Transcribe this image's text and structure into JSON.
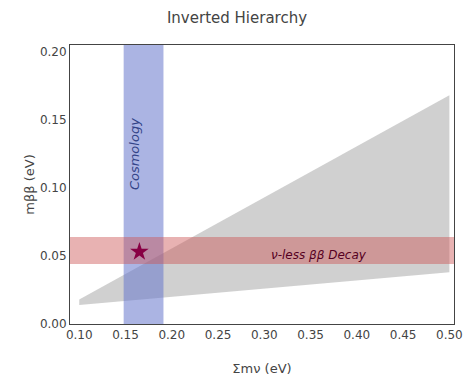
{
  "chart_data": {
    "type": "scatter",
    "title": "Inverted Hierarchy",
    "xlabel": "Σmν (eV)",
    "ylabel": "mββ (eV)",
    "xlim": [
      0.09,
      0.505
    ],
    "ylim": [
      0.0,
      0.205
    ],
    "xticks": [
      {
        "value": 0.1,
        "label": "0.10"
      },
      0.15,
      {
        "value": 0.2,
        "label": "0.20"
      },
      0.25,
      {
        "value": 0.3,
        "label": "0.30"
      },
      0.35,
      {
        "value": 0.4,
        "label": "0.40"
      },
      0.45,
      {
        "value": 0.5,
        "label": "0.50"
      }
    ],
    "yticks": [
      {
        "value": 0.0,
        "label": "0.00"
      },
      0.05,
      {
        "value": 0.1,
        "label": "0.10"
      },
      0.15,
      {
        "value": 0.2,
        "label": "0.20"
      }
    ],
    "grid": false,
    "background_color": "#ffffff",
    "regions": [
      {
        "type": "band",
        "x": [
          0.1,
          0.5
        ],
        "upper": [
          0.018,
          0.168
        ],
        "lower": [
          0.014,
          0.038
        ],
        "color": "#aaaaaa"
      },
      {
        "type": "vspan",
        "x_min": 0.148,
        "x_max": 0.191,
        "color": "#6677cc",
        "label": "Cosmology",
        "label_x": 0.1605,
        "label_y": 0.125,
        "label_color": "#334488"
      },
      {
        "type": "hspan",
        "y_min": 0.044,
        "y_max": 0.064,
        "color": "#cc5555",
        "label": "ν-less ββ Decay",
        "label_x": 0.305,
        "label_y": 0.0505,
        "label_color": "#550022"
      }
    ],
    "series": [
      {
        "x": [
          0.165
        ],
        "values": [
          0.053
        ],
        "color": "#880044",
        "marker": "star"
      }
    ]
  }
}
